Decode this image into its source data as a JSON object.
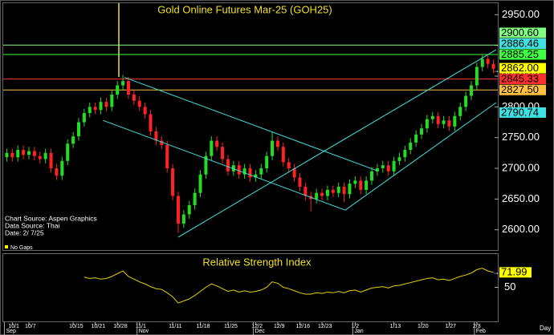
{
  "chart_data": [
    {
      "type": "candlestick",
      "title": "Gold Online Futures Mar-25 (GOH25)",
      "ylim": [
        2567,
        2970
      ],
      "yticks": [
        {
          "value": 2950,
          "label": "2950.00"
        },
        {
          "value": 2900,
          "label": "2900.00"
        },
        {
          "value": 2850,
          "label": "2850.00"
        },
        {
          "value": 2800,
          "label": "2800.00"
        },
        {
          "value": 2750,
          "label": "2750.00"
        },
        {
          "value": 2700,
          "label": "2700.00"
        },
        {
          "value": 2650,
          "label": "2650.00"
        },
        {
          "value": 2600,
          "label": "2600.00"
        }
      ],
      "up_color": "#22dd22",
      "down_color": "#ff2222",
      "candles": [
        [
          2718,
          2732,
          2711,
          2725
        ],
        [
          2725,
          2732,
          2711,
          2718
        ],
        [
          2718,
          2737,
          2711,
          2730
        ],
        [
          2730,
          2737,
          2715,
          2722
        ],
        [
          2722,
          2735,
          2715,
          2728
        ],
        [
          2728,
          2735,
          2713,
          2720
        ],
        [
          2720,
          2727,
          2708,
          2715
        ],
        [
          2715,
          2732,
          2708,
          2725
        ],
        [
          2725,
          2732,
          2693,
          2700
        ],
        [
          2700,
          2707,
          2681,
          2688
        ],
        [
          2688,
          2719,
          2681,
          2712
        ],
        [
          2712,
          2747,
          2705,
          2740
        ],
        [
          2740,
          2759,
          2733,
          2752
        ],
        [
          2752,
          2782,
          2745,
          2775
        ],
        [
          2775,
          2797,
          2768,
          2790
        ],
        [
          2790,
          2807,
          2783,
          2800
        ],
        [
          2800,
          2807,
          2788,
          2795
        ],
        [
          2795,
          2815,
          2788,
          2808
        ],
        [
          2808,
          2815,
          2793,
          2800
        ],
        [
          2800,
          2827,
          2793,
          2820
        ],
        [
          2820,
          2842,
          2813,
          2835
        ],
        [
          2835,
          2852,
          2828,
          2842
        ],
        [
          2842,
          2849,
          2813,
          2820
        ],
        [
          2820,
          2827,
          2803,
          2810
        ],
        [
          2810,
          2817,
          2793,
          2800
        ],
        [
          2800,
          2807,
          2781,
          2788
        ],
        [
          2788,
          2795,
          2753,
          2760
        ],
        [
          2760,
          2767,
          2738,
          2745
        ],
        [
          2745,
          2752,
          2731,
          2738
        ],
        [
          2738,
          2745,
          2693,
          2700
        ],
        [
          2700,
          2707,
          2648,
          2655
        ],
        [
          2655,
          2662,
          2595,
          2610
        ],
        [
          2610,
          2632,
          2603,
          2625
        ],
        [
          2625,
          2647,
          2618,
          2640
        ],
        [
          2640,
          2667,
          2633,
          2660
        ],
        [
          2660,
          2697,
          2653,
          2690
        ],
        [
          2690,
          2727,
          2683,
          2720
        ],
        [
          2720,
          2752,
          2713,
          2745
        ],
        [
          2745,
          2752,
          2728,
          2735
        ],
        [
          2735,
          2742,
          2708,
          2715
        ],
        [
          2715,
          2722,
          2688,
          2695
        ],
        [
          2695,
          2712,
          2688,
          2705
        ],
        [
          2705,
          2712,
          2683,
          2690
        ],
        [
          2690,
          2707,
          2683,
          2700
        ],
        [
          2700,
          2707,
          2678,
          2685
        ],
        [
          2685,
          2697,
          2678,
          2690
        ],
        [
          2690,
          2707,
          2683,
          2700
        ],
        [
          2700,
          2727,
          2693,
          2720
        ],
        [
          2720,
          2760,
          2713,
          2745
        ],
        [
          2745,
          2752,
          2728,
          2735
        ],
        [
          2735,
          2742,
          2703,
          2710
        ],
        [
          2710,
          2717,
          2693,
          2700
        ],
        [
          2700,
          2707,
          2678,
          2685
        ],
        [
          2685,
          2692,
          2663,
          2670
        ],
        [
          2670,
          2677,
          2648,
          2655
        ],
        [
          2655,
          2662,
          2630,
          2650
        ],
        [
          2650,
          2667,
          2643,
          2660
        ],
        [
          2660,
          2667,
          2648,
          2655
        ],
        [
          2655,
          2672,
          2648,
          2665
        ],
        [
          2665,
          2672,
          2653,
          2660
        ],
        [
          2660,
          2677,
          2653,
          2670
        ],
        [
          2670,
          2677,
          2645,
          2658
        ],
        [
          2658,
          2682,
          2651,
          2675
        ],
        [
          2675,
          2687,
          2668,
          2680
        ],
        [
          2680,
          2687,
          2658,
          2665
        ],
        [
          2665,
          2687,
          2658,
          2680
        ],
        [
          2680,
          2702,
          2673,
          2695
        ],
        [
          2695,
          2707,
          2688,
          2700
        ],
        [
          2700,
          2712,
          2693,
          2705
        ],
        [
          2705,
          2712,
          2688,
          2695
        ],
        [
          2695,
          2719,
          2688,
          2712
        ],
        [
          2712,
          2725,
          2705,
          2718
        ],
        [
          2718,
          2737,
          2711,
          2730
        ],
        [
          2730,
          2749,
          2723,
          2742
        ],
        [
          2742,
          2762,
          2735,
          2755
        ],
        [
          2755,
          2772,
          2748,
          2765
        ],
        [
          2765,
          2787,
          2758,
          2780
        ],
        [
          2780,
          2792,
          2773,
          2785
        ],
        [
          2785,
          2792,
          2765,
          2772
        ],
        [
          2772,
          2785,
          2765,
          2778
        ],
        [
          2778,
          2785,
          2761,
          2768
        ],
        [
          2768,
          2792,
          2761,
          2785
        ],
        [
          2785,
          2807,
          2778,
          2800
        ],
        [
          2800,
          2825,
          2793,
          2818
        ],
        [
          2818,
          2842,
          2811,
          2835
        ],
        [
          2835,
          2872,
          2828,
          2865
        ],
        [
          2865,
          2884,
          2858,
          2878
        ],
        [
          2878,
          2885,
          2863,
          2870
        ],
        [
          2870,
          2877,
          2855,
          2862
        ]
      ],
      "trendlines": [
        {
          "color": "#40e0e0",
          "from": [
            21.3,
            2848
          ],
          "to": [
            67,
            2696
          ]
        },
        {
          "color": "#40e0e0",
          "from": [
            17.4,
            2778
          ],
          "to": [
            61.2,
            2632
          ]
        },
        {
          "color": "#40e0e0",
          "from": [
            61.2,
            2632
          ],
          "to": [
            88.5,
            2807
          ]
        },
        {
          "color": "#40e0e0",
          "from": [
            31,
            2588
          ],
          "to": [
            88.5,
            2893
          ]
        }
      ],
      "levels": [
        {
          "value": 2900.6,
          "label": "2900.60",
          "color": "#80ff80",
          "line": true
        },
        {
          "value": 2886.46,
          "label": "2886.46",
          "color": "#40e0e0",
          "line": false
        },
        {
          "value": 2885.25,
          "label": "2885.25",
          "color": "#40ff40",
          "line": true
        },
        {
          "value": 2862,
          "label": "2862.00",
          "color": "#ffff00",
          "line": false
        },
        {
          "value": 2845.33,
          "label": "2845.33",
          "color": "#ff3030",
          "line": true
        },
        {
          "value": 2827.5,
          "label": "2827.50",
          "color": "#ffc040",
          "line": true
        },
        {
          "value": 2790.74,
          "label": "2790.74",
          "color": "#40e0e0",
          "line": false
        }
      ],
      "notes": [
        "Chart Source: Aspen Graphics",
        "Data Source: Thai",
        "Date:  2/ 7/25"
      ],
      "gap_note": "No Gaps"
    },
    {
      "type": "line",
      "title": "Relative Strength Index",
      "color": "#e8d000",
      "ylim": [
        0,
        100
      ],
      "yticks": [
        50
      ],
      "values": [
        null,
        null,
        null,
        null,
        null,
        null,
        null,
        null,
        null,
        null,
        null,
        null,
        null,
        null,
        65,
        63,
        64,
        62,
        63,
        66,
        70,
        74,
        66,
        62,
        58,
        55,
        51,
        48,
        47,
        42,
        36,
        27,
        30,
        33,
        38,
        44,
        50,
        55,
        52,
        48,
        44,
        46,
        43,
        45,
        43,
        44,
        46,
        50,
        58,
        56,
        50,
        48,
        45,
        42,
        40,
        40,
        42,
        41,
        43,
        42,
        44,
        42,
        45,
        46,
        43,
        46,
        49,
        50,
        51,
        49,
        52,
        53,
        55,
        57,
        59,
        61,
        63,
        64,
        61,
        62,
        60,
        63,
        66,
        68,
        71,
        76,
        78,
        74,
        71.99
      ],
      "categories": [
        null,
        "10/1",
        null,
        null,
        "10/7",
        null,
        null,
        null,
        null,
        null,
        null,
        null,
        "10/15",
        null,
        null,
        null,
        "10/21",
        null,
        null,
        null,
        "10/28",
        null,
        null,
        null,
        "11/1",
        null,
        null,
        null,
        null,
        null,
        "11/11",
        null,
        null,
        null,
        null,
        "11/18",
        null,
        null,
        null,
        null,
        "11/25",
        null,
        null,
        null,
        null,
        "12/2",
        null,
        null,
        null,
        "12/9",
        null,
        null,
        null,
        "12/16",
        null,
        null,
        null,
        "12/23",
        null,
        null,
        null,
        null,
        null,
        "1/2",
        null,
        null,
        null,
        null,
        null,
        null,
        "1/13",
        null,
        null,
        null,
        null,
        "1/20",
        null,
        null,
        null,
        null,
        "1/27",
        null,
        null,
        null,
        null,
        "2/3",
        null,
        null,
        null
      ],
      "months": [
        "Sep",
        null,
        null,
        null,
        null,
        null,
        null,
        null,
        null,
        null,
        null,
        null,
        null,
        null,
        null,
        null,
        null,
        null,
        null,
        null,
        null,
        null,
        null,
        null,
        "Nov",
        null,
        null,
        null,
        null,
        null,
        null,
        null,
        null,
        null,
        null,
        null,
        null,
        null,
        null,
        null,
        null,
        null,
        null,
        null,
        null,
        "Dec",
        null,
        null,
        null,
        null,
        null,
        null,
        null,
        null,
        null,
        null,
        null,
        null,
        null,
        null,
        null,
        null,
        null,
        "Jan",
        null,
        null,
        null,
        null,
        null,
        null,
        null,
        null,
        null,
        null,
        null,
        null,
        null,
        null,
        null,
        null,
        null,
        null,
        null,
        null,
        null,
        "Feb",
        null,
        null,
        null
      ],
      "period_label": "Day"
    }
  ]
}
